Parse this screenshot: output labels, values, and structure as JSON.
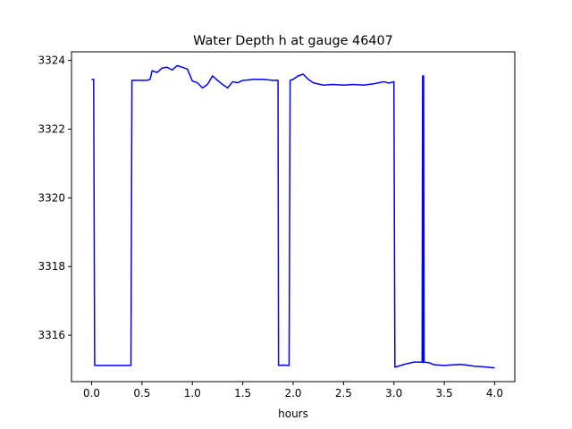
{
  "chart_data": {
    "type": "line",
    "title": "Water Depth h at gauge 46407",
    "xlabel": "hours",
    "ylabel": "",
    "xlim": [
      -0.2,
      4.2
    ],
    "ylim": [
      3314.65,
      3324.25
    ],
    "xticks": [
      0.0,
      0.5,
      1.0,
      1.5,
      2.0,
      2.5,
      3.0,
      3.5,
      4.0
    ],
    "xtick_labels": [
      "0.0",
      "0.5",
      "1.0",
      "1.5",
      "2.0",
      "2.5",
      "3.0",
      "3.5",
      "4.0"
    ],
    "yticks": [
      3316,
      3318,
      3320,
      3322,
      3324
    ],
    "ytick_labels": [
      "3316",
      "3318",
      "3320",
      "3322",
      "3324"
    ],
    "grid": false,
    "series": [
      {
        "color": "#0000ff",
        "x": [
          0.0,
          0.02,
          0.03,
          0.1,
          0.2,
          0.3,
          0.39,
          0.4,
          0.45,
          0.5,
          0.55,
          0.58,
          0.6,
          0.65,
          0.7,
          0.75,
          0.8,
          0.85,
          0.9,
          0.95,
          1.0,
          1.05,
          1.1,
          1.15,
          1.2,
          1.25,
          1.3,
          1.35,
          1.4,
          1.45,
          1.5,
          1.55,
          1.6,
          1.7,
          1.8,
          1.85,
          1.855,
          1.9,
          1.95,
          1.96,
          1.97,
          2.0,
          2.05,
          2.1,
          2.15,
          2.2,
          2.3,
          2.4,
          2.5,
          2.6,
          2.7,
          2.8,
          2.9,
          2.95,
          3.0,
          3.01,
          3.1,
          3.2,
          3.28,
          3.285,
          3.29,
          3.295,
          3.3,
          3.35,
          3.4,
          3.5,
          3.6,
          3.65,
          3.7,
          3.8,
          3.9,
          4.0
        ],
        "y": [
          3323.45,
          3323.45,
          3315.12,
          3315.12,
          3315.12,
          3315.12,
          3315.12,
          3323.42,
          3323.42,
          3323.42,
          3323.42,
          3323.45,
          3323.7,
          3323.65,
          3323.78,
          3323.8,
          3323.72,
          3323.85,
          3323.8,
          3323.75,
          3323.4,
          3323.35,
          3323.2,
          3323.3,
          3323.55,
          3323.42,
          3323.3,
          3323.2,
          3323.38,
          3323.35,
          3323.42,
          3323.43,
          3323.45,
          3323.45,
          3323.42,
          3323.42,
          3315.12,
          3315.13,
          3315.12,
          3315.12,
          3323.42,
          3323.45,
          3323.55,
          3323.6,
          3323.45,
          3323.35,
          3323.28,
          3323.3,
          3323.28,
          3323.3,
          3323.28,
          3323.32,
          3323.38,
          3323.34,
          3323.38,
          3315.07,
          3315.15,
          3315.22,
          3315.22,
          3323.55,
          3315.2,
          3323.55,
          3315.22,
          3315.2,
          3315.14,
          3315.12,
          3315.14,
          3315.15,
          3315.14,
          3315.1,
          3315.08,
          3315.05
        ]
      }
    ]
  }
}
